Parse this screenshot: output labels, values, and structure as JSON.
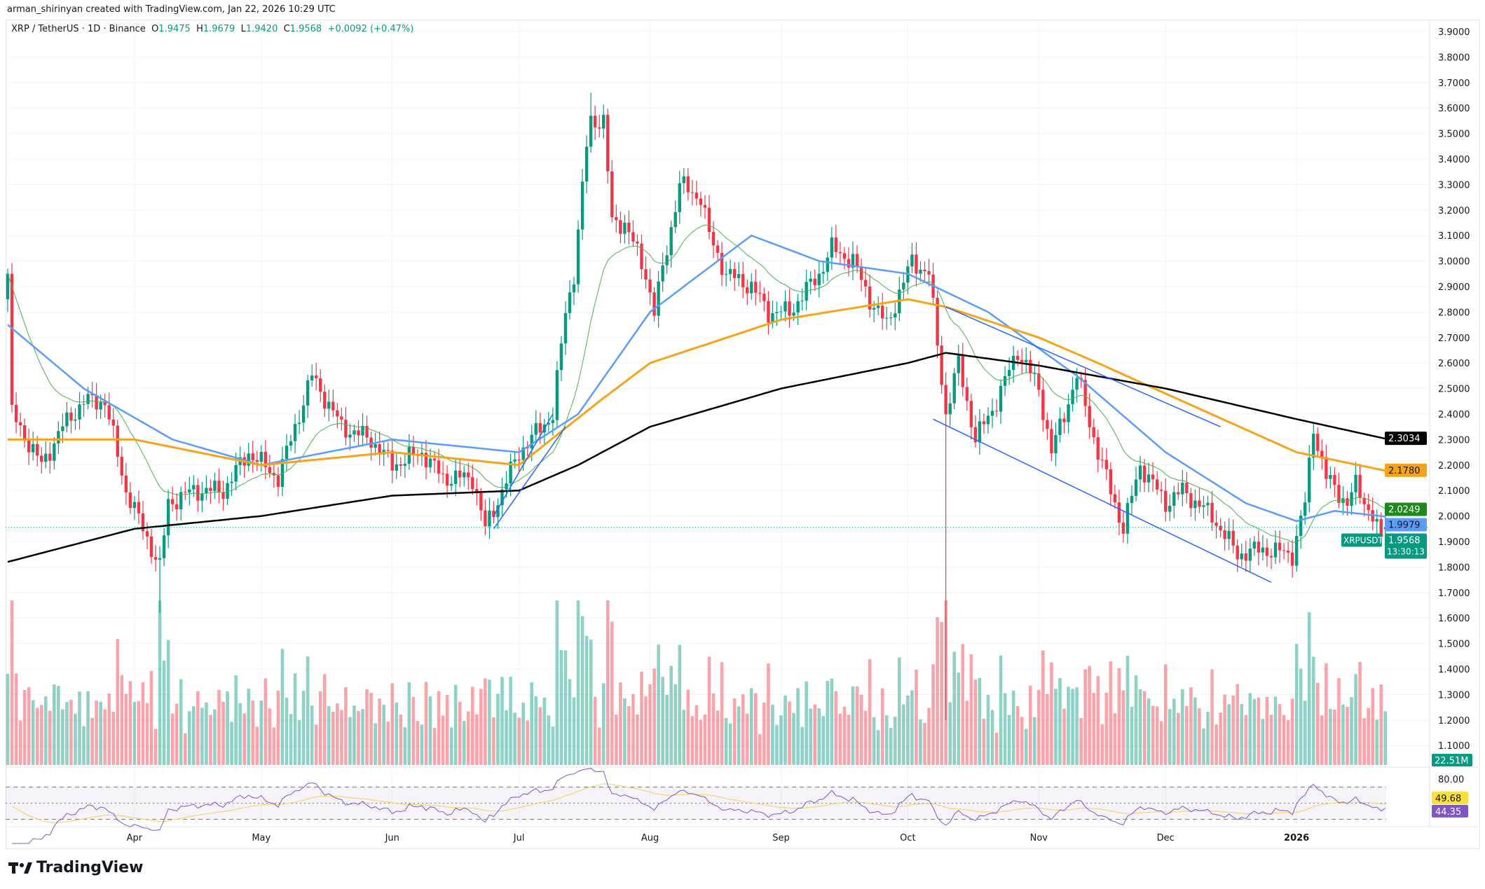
{
  "credit": "arman_shirinyan created with TradingView.com, Jan 22, 2026 10:29 UTC",
  "legend": {
    "symbol": "XRP / TetherUS · 1D · Binance",
    "o_label": "O",
    "o": "1.9475",
    "h_label": "H",
    "h": "1.9679",
    "l_label": "L",
    "l": "1.9420",
    "c_label": "C",
    "c": "1.9568",
    "change": "+0.0092 (+0.47%)"
  },
  "logo": "TradingView",
  "colors": {
    "up": "#089981",
    "down": "#f23645",
    "ma200": "#000000",
    "ma100": "#f7a21b",
    "ma50": "#5b9cf6",
    "ma20": "#4caf50",
    "rsi": "#7e57c2",
    "channel": "#2962ff"
  },
  "chart_data": {
    "type": "candlestick",
    "start_date": "2025-03-02",
    "end_date": "2026-01-22",
    "ylim": [
      1.1,
      3.9
    ],
    "y_ticks": [
      "3.9000",
      "3.8000",
      "3.7000",
      "3.6000",
      "3.5000",
      "3.4000",
      "3.3000",
      "3.2000",
      "3.1000",
      "3.0000",
      "2.9000",
      "2.8000",
      "2.7000",
      "2.6000",
      "2.5000",
      "2.4000",
      "2.3000",
      "2.2000",
      "2.1000",
      "2.0000",
      "1.9000",
      "1.8000",
      "1.7000",
      "1.6000",
      "1.5000",
      "1.4000",
      "1.3000",
      "1.2000",
      "1.1000"
    ],
    "x_ticks": [
      {
        "label": "Apr",
        "date": "2025-04-01"
      },
      {
        "label": "May",
        "date": "2025-05-01"
      },
      {
        "label": "Jun",
        "date": "2025-06-01"
      },
      {
        "label": "Jul",
        "date": "2025-07-01"
      },
      {
        "label": "Aug",
        "date": "2025-08-01"
      },
      {
        "label": "Sep",
        "date": "2025-09-01"
      },
      {
        "label": "Oct",
        "date": "2025-10-01"
      },
      {
        "label": "Nov",
        "date": "2025-11-01"
      },
      {
        "label": "Dec",
        "date": "2025-12-01"
      },
      {
        "label": "2026",
        "date": "2026-01-01"
      }
    ],
    "close_path": [
      [
        "2025-03-02",
        2.95
      ],
      [
        "2025-03-03",
        2.4
      ],
      [
        "2025-03-10",
        2.2
      ],
      [
        "2025-03-15",
        2.35
      ],
      [
        "2025-03-20",
        2.45
      ],
      [
        "2025-03-25",
        2.45
      ],
      [
        "2025-03-30",
        2.1
      ],
      [
        "2025-04-07",
        1.8
      ],
      [
        "2025-04-09",
        2.05
      ],
      [
        "2025-04-15",
        2.1
      ],
      [
        "2025-04-22",
        2.1
      ],
      [
        "2025-04-28",
        2.25
      ],
      [
        "2025-05-05",
        2.15
      ],
      [
        "2025-05-10",
        2.4
      ],
      [
        "2025-05-13",
        2.55
      ],
      [
        "2025-05-20",
        2.35
      ],
      [
        "2025-05-27",
        2.3
      ],
      [
        "2025-06-01",
        2.2
      ],
      [
        "2025-06-08",
        2.25
      ],
      [
        "2025-06-13",
        2.15
      ],
      [
        "2025-06-20",
        2.15
      ],
      [
        "2025-06-23",
        1.95
      ],
      [
        "2025-07-01",
        2.25
      ],
      [
        "2025-07-09",
        2.4
      ],
      [
        "2025-07-12",
        2.8
      ],
      [
        "2025-07-14",
        2.95
      ],
      [
        "2025-07-17",
        3.45
      ],
      [
        "2025-07-18",
        3.55
      ],
      [
        "2025-07-21",
        3.55
      ],
      [
        "2025-07-23",
        3.15
      ],
      [
        "2025-07-26",
        3.15
      ],
      [
        "2025-07-31",
        2.95
      ],
      [
        "2025-08-02",
        2.8
      ],
      [
        "2025-08-08",
        3.3
      ],
      [
        "2025-08-13",
        3.25
      ],
      [
        "2025-08-15",
        3.1
      ],
      [
        "2025-08-19",
        2.95
      ],
      [
        "2025-08-25",
        2.9
      ],
      [
        "2025-08-29",
        2.8
      ],
      [
        "2025-09-03",
        2.8
      ],
      [
        "2025-09-10",
        2.95
      ],
      [
        "2025-09-13",
        3.05
      ],
      [
        "2025-09-18",
        3.0
      ],
      [
        "2025-09-22",
        2.85
      ],
      [
        "2025-09-26",
        2.75
      ],
      [
        "2025-10-02",
        3.0
      ],
      [
        "2025-10-06",
        2.95
      ],
      [
        "2025-10-10",
        2.4
      ],
      [
        "2025-10-13",
        2.6
      ],
      [
        "2025-10-17",
        2.3
      ],
      [
        "2025-10-22",
        2.45
      ],
      [
        "2025-10-27",
        2.65
      ],
      [
        "2025-11-01",
        2.5
      ],
      [
        "2025-11-04",
        2.25
      ],
      [
        "2025-11-10",
        2.55
      ],
      [
        "2025-11-15",
        2.25
      ],
      [
        "2025-11-21",
        1.95
      ],
      [
        "2025-11-25",
        2.2
      ],
      [
        "2025-12-01",
        2.05
      ],
      [
        "2025-12-05",
        2.1
      ],
      [
        "2025-12-12",
        2.0
      ],
      [
        "2025-12-18",
        1.85
      ],
      [
        "2025-12-24",
        1.87
      ],
      [
        "2025-12-31",
        1.85
      ],
      [
        "2026-01-03",
        2.05
      ],
      [
        "2026-01-05",
        2.35
      ],
      [
        "2026-01-08",
        2.15
      ],
      [
        "2026-01-13",
        2.05
      ],
      [
        "2026-01-15",
        2.12
      ],
      [
        "2026-01-19",
        2.0
      ],
      [
        "2026-01-21",
        1.9
      ],
      [
        "2026-01-22",
        1.9568
      ]
    ],
    "notable_wicks": [
      {
        "date": "2025-04-07",
        "low": 1.62
      },
      {
        "date": "2025-10-10",
        "low": 1.2
      },
      {
        "date": "2025-07-18",
        "high": 3.66
      }
    ],
    "ma200": [
      [
        "2025-03-02",
        1.82
      ],
      [
        "2025-04-01",
        1.95
      ],
      [
        "2025-05-01",
        2.0
      ],
      [
        "2025-06-01",
        2.08
      ],
      [
        "2025-07-01",
        2.1
      ],
      [
        "2025-07-15",
        2.2
      ],
      [
        "2025-08-01",
        2.35
      ],
      [
        "2025-09-01",
        2.5
      ],
      [
        "2025-10-01",
        2.6
      ],
      [
        "2025-10-10",
        2.64
      ],
      [
        "2025-11-01",
        2.59
      ],
      [
        "2025-12-01",
        2.5
      ],
      [
        "2026-01-01",
        2.38
      ],
      [
        "2026-01-22",
        2.3034
      ]
    ],
    "ma100": [
      [
        "2025-03-02",
        2.3
      ],
      [
        "2025-04-01",
        2.3
      ],
      [
        "2025-05-01",
        2.2
      ],
      [
        "2025-06-01",
        2.25
      ],
      [
        "2025-07-01",
        2.2
      ],
      [
        "2025-07-20",
        2.45
      ],
      [
        "2025-08-01",
        2.6
      ],
      [
        "2025-09-01",
        2.77
      ],
      [
        "2025-10-01",
        2.85
      ],
      [
        "2025-10-10",
        2.82
      ],
      [
        "2025-11-01",
        2.7
      ],
      [
        "2025-11-15",
        2.6
      ],
      [
        "2025-12-01",
        2.48
      ],
      [
        "2026-01-01",
        2.25
      ],
      [
        "2026-01-22",
        2.178
      ]
    ],
    "ma50": [
      [
        "2025-03-02",
        2.75
      ],
      [
        "2025-03-20",
        2.5
      ],
      [
        "2025-04-10",
        2.3
      ],
      [
        "2025-05-01",
        2.2
      ],
      [
        "2025-06-01",
        2.3
      ],
      [
        "2025-07-01",
        2.25
      ],
      [
        "2025-07-15",
        2.4
      ],
      [
        "2025-08-01",
        2.8
      ],
      [
        "2025-08-25",
        3.1
      ],
      [
        "2025-09-10",
        3.0
      ],
      [
        "2025-10-01",
        2.95
      ],
      [
        "2025-10-20",
        2.8
      ],
      [
        "2025-11-10",
        2.55
      ],
      [
        "2025-12-01",
        2.25
      ],
      [
        "2025-12-20",
        2.05
      ],
      [
        "2026-01-01",
        1.98
      ],
      [
        "2026-01-10",
        2.02
      ],
      [
        "2026-01-22",
        1.9979
      ]
    ],
    "trendlines": [
      [
        [
          "2025-06-25",
          2.0
        ],
        [
          "2025-07-09",
          2.4
        ]
      ],
      [
        [
          "2025-06-25",
          1.95
        ],
        [
          "2025-07-12",
          2.35
        ]
      ],
      [
        [
          "2025-10-10",
          2.82
        ],
        [
          "2025-12-14",
          2.35
        ]
      ],
      [
        [
          "2025-10-07",
          2.38
        ],
        [
          "2025-12-26",
          1.74
        ]
      ]
    ],
    "price_labels": [
      {
        "text": "2.3034",
        "value": 2.3034,
        "bg": "#000000",
        "fg": "#ffffff"
      },
      {
        "text": "2.1780",
        "value": 2.178,
        "bg": "#f7a21b",
        "fg": "#131722"
      },
      {
        "text": "2.0249",
        "value": 2.0249,
        "bg": "#1b8a1b",
        "fg": "#ffffff"
      },
      {
        "text": "1.9979",
        "value": 1.9979,
        "bg": "#5b9cf6",
        "fg": "#131722"
      }
    ],
    "last_price": {
      "symbol": "XRPUSDT",
      "price": "1.9568",
      "countdown": "13:30:13",
      "value": 1.9568
    },
    "volume_label": "22.51M",
    "rsi": {
      "ticks": [
        "80.00"
      ],
      "upper": 70,
      "lower": 30,
      "value_labels": [
        "49.68",
        "44.35"
      ]
    }
  }
}
